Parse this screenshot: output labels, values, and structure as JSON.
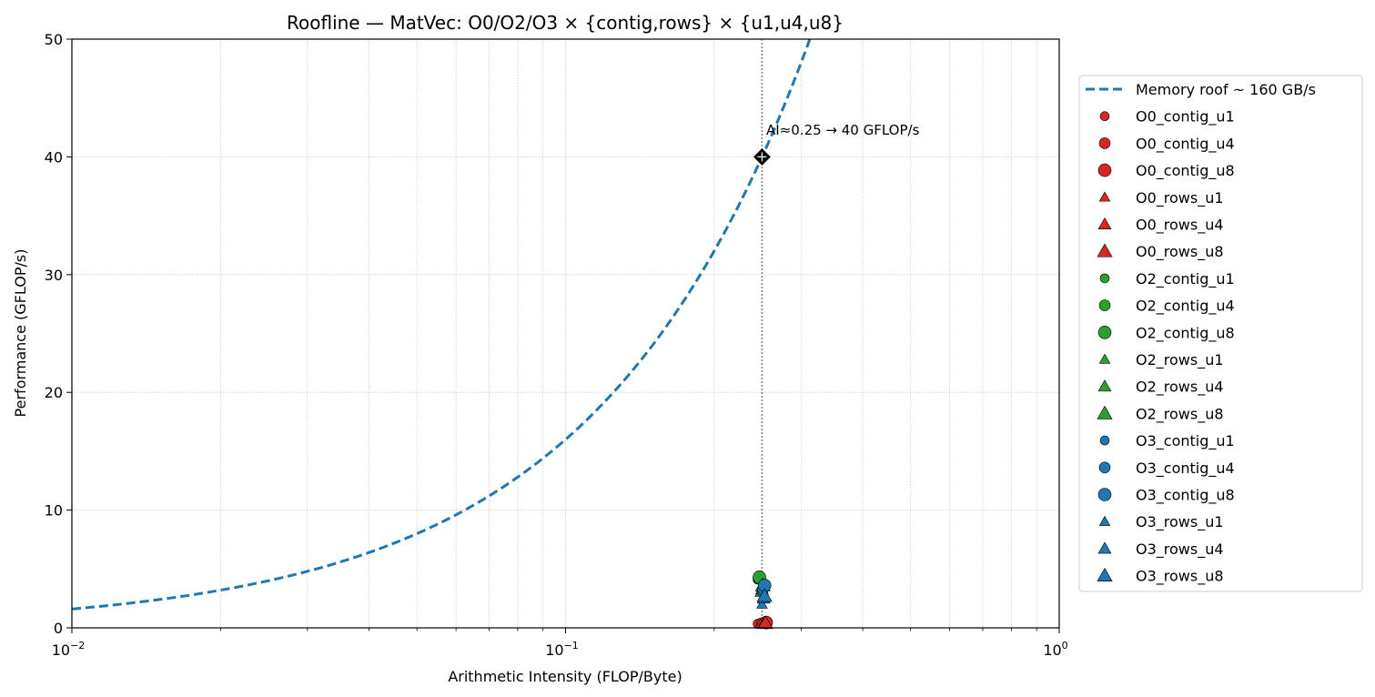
{
  "chart_data": {
    "type": "scatter",
    "title": "Roofline — MatVec: O0/O2/O3 × {contig,rows} × {u1,u4,u8}",
    "xlabel": "Arithmetic Intensity (FLOP/Byte)",
    "ylabel": "Performance (GFLOP/s)",
    "xscale": "log",
    "xlim": [
      0.01,
      1
    ],
    "ylim": [
      0,
      50
    ],
    "x_ticks": [
      {
        "value": 0.01,
        "base": "10",
        "exp": "−2"
      },
      {
        "value": 0.1,
        "base": "10",
        "exp": "−1"
      },
      {
        "value": 1,
        "base": "10",
        "exp": "0"
      }
    ],
    "y_ticks": [
      0,
      10,
      20,
      30,
      40,
      50
    ],
    "grid": true,
    "legend_position": "outside right",
    "memory_roof": {
      "label": "Memory roof ~ 160 GB/s",
      "bandwidth": 160,
      "color": "#1f77b4",
      "style": "dashed"
    },
    "ridge_line_x": 0.25,
    "annotation": {
      "text": "AI≈0.25 → 40 GFLOP/s",
      "x": 0.25,
      "y": 40
    },
    "series": [
      {
        "name": "O0_contig_u1",
        "marker": "circle",
        "size": "small",
        "color": "#d62728",
        "points": [
          {
            "x": 0.245,
            "y": 0.35
          }
        ]
      },
      {
        "name": "O0_contig_u4",
        "marker": "circle",
        "size": "medium",
        "color": "#d62728",
        "points": [
          {
            "x": 0.25,
            "y": 0.4
          }
        ]
      },
      {
        "name": "O0_contig_u8",
        "marker": "circle",
        "size": "large",
        "color": "#d62728",
        "points": [
          {
            "x": 0.255,
            "y": 0.45
          }
        ]
      },
      {
        "name": "O0_rows_u1",
        "marker": "triangle",
        "size": "small",
        "color": "#d62728",
        "points": [
          {
            "x": 0.248,
            "y": 0.3
          }
        ]
      },
      {
        "name": "O0_rows_u4",
        "marker": "triangle",
        "size": "medium",
        "color": "#d62728",
        "points": [
          {
            "x": 0.252,
            "y": 0.35
          }
        ]
      },
      {
        "name": "O0_rows_u8",
        "marker": "triangle",
        "size": "large",
        "color": "#d62728",
        "points": [
          {
            "x": 0.254,
            "y": 0.4
          }
        ]
      },
      {
        "name": "O2_contig_u1",
        "marker": "circle",
        "size": "small",
        "color": "#2ca02c",
        "points": [
          {
            "x": 0.245,
            "y": 4.1
          }
        ]
      },
      {
        "name": "O2_contig_u4",
        "marker": "circle",
        "size": "medium",
        "color": "#2ca02c",
        "points": [
          {
            "x": 0.246,
            "y": 4.2
          }
        ]
      },
      {
        "name": "O2_contig_u8",
        "marker": "circle",
        "size": "large",
        "color": "#2ca02c",
        "points": [
          {
            "x": 0.247,
            "y": 4.3
          }
        ]
      },
      {
        "name": "O2_rows_u1",
        "marker": "triangle",
        "size": "small",
        "color": "#2ca02c",
        "points": [
          {
            "x": 0.248,
            "y": 3.0
          }
        ]
      },
      {
        "name": "O2_rows_u4",
        "marker": "triangle",
        "size": "medium",
        "color": "#2ca02c",
        "points": [
          {
            "x": 0.25,
            "y": 3.3
          }
        ]
      },
      {
        "name": "O2_rows_u8",
        "marker": "triangle",
        "size": "large",
        "color": "#2ca02c",
        "points": [
          {
            "x": 0.251,
            "y": 3.6
          }
        ]
      },
      {
        "name": "O3_contig_u1",
        "marker": "circle",
        "size": "small",
        "color": "#1f77b4",
        "points": [
          {
            "x": 0.25,
            "y": 3.0
          }
        ]
      },
      {
        "name": "O3_contig_u4",
        "marker": "circle",
        "size": "medium",
        "color": "#1f77b4",
        "points": [
          {
            "x": 0.251,
            "y": 3.3
          }
        ]
      },
      {
        "name": "O3_contig_u8",
        "marker": "circle",
        "size": "large",
        "color": "#1f77b4",
        "points": [
          {
            "x": 0.253,
            "y": 3.6
          }
        ]
      },
      {
        "name": "O3_rows_u1",
        "marker": "triangle",
        "size": "small",
        "color": "#1f77b4",
        "points": [
          {
            "x": 0.25,
            "y": 2.0
          }
        ]
      },
      {
        "name": "O3_rows_u4",
        "marker": "triangle",
        "size": "medium",
        "color": "#1f77b4",
        "points": [
          {
            "x": 0.252,
            "y": 2.5
          }
        ]
      },
      {
        "name": "O3_rows_u8",
        "marker": "triangle",
        "size": "large",
        "color": "#1f77b4",
        "points": [
          {
            "x": 0.253,
            "y": 2.7
          }
        ]
      }
    ],
    "highlight_points": [
      {
        "marker": "diamond",
        "color": "#000000",
        "x": 0.25,
        "y": 40
      },
      {
        "marker": "plus",
        "color": "#000000",
        "x": 0.25,
        "y": 40
      }
    ]
  }
}
